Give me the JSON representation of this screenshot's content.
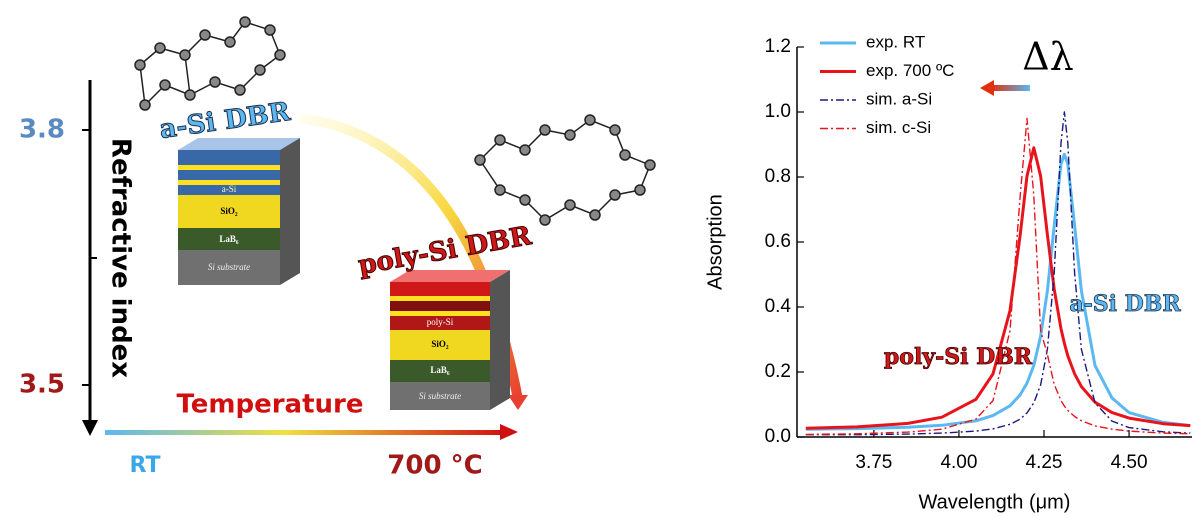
{
  "diagram": {
    "index_high": "3.8",
    "index_low": "3.5",
    "axis_label": "Refractive index",
    "temperature_label": "Temperature",
    "temp_low": "RT",
    "temp_high": "700 °C",
    "stack_1": {
      "title": "a-Si DBR",
      "layer_top": "a-Si",
      "layer_mid": "SiO₂",
      "layer_low": "LaB₆",
      "substrate": "Si substrate"
    },
    "stack_2": {
      "title": "poly-Si DBR",
      "layer_top": "poly-Si",
      "layer_mid": "SiO₂",
      "layer_low": "LaB₆",
      "substrate": "Si substrate"
    }
  },
  "chart_data": {
    "type": "line",
    "xlabel": "Wavelength (μm)",
    "ylabel": "Absorption",
    "annotations": [
      "Δλ",
      "a-Si DBR",
      "poly-Si DBR"
    ],
    "xlim": [
      3.524,
      4.685
    ],
    "ylim": [
      0,
      1.2
    ],
    "xticks": [
      3.75,
      {
        "value": 4,
        "label": "4.00"
      },
      4.25,
      {
        "value": 4.5,
        "label": "4.50"
      }
    ],
    "yticks": [
      {
        "value": 0,
        "label": "0.0"
      },
      0.2,
      0.4,
      0.6,
      0.8,
      {
        "value": 1,
        "label": "1.0"
      },
      1.2
    ],
    "x": [
      3.55,
      3.7,
      3.85,
      3.95,
      4.05,
      4.1,
      4.15,
      4.18,
      4.2,
      4.22,
      4.24,
      4.26,
      4.28,
      4.3,
      4.31,
      4.32,
      4.34,
      4.36,
      4.4,
      4.45,
      4.5,
      4.6,
      4.68
    ],
    "series": [
      {
        "name": "exp. RT",
        "color": "#5bb8f0",
        "values": [
          0.024,
          0.026,
          0.03,
          0.036,
          0.05,
          0.066,
          0.096,
          0.13,
          0.166,
          0.22,
          0.31,
          0.45,
          0.65,
          0.84,
          0.87,
          0.84,
          0.65,
          0.45,
          0.22,
          0.12,
          0.075,
          0.045,
          0.035
        ]
      },
      {
        "name": "exp. 700 ºC",
        "color": "#e8141c",
        "values": [
          0.027,
          0.031,
          0.042,
          0.061,
          0.116,
          0.194,
          0.389,
          0.622,
          0.803,
          0.89,
          0.803,
          0.622,
          0.455,
          0.333,
          0.288,
          0.25,
          0.194,
          0.155,
          0.107,
          0.075,
          0.058,
          0.041,
          0.035
        ]
      },
      {
        "name": "sim. a-Si",
        "color": "#1a1a80",
        "dash": "dashdot",
        "values": [
          0.007,
          0.007,
          0.009,
          0.012,
          0.018,
          0.025,
          0.039,
          0.055,
          0.074,
          0.105,
          0.16,
          0.27,
          0.505,
          0.905,
          1.0,
          0.905,
          0.505,
          0.27,
          0.105,
          0.049,
          0.029,
          0.016,
          0.012
        ]
      },
      {
        "name": "sim. c-Si",
        "color": "#e8141c",
        "dash": "dashdot",
        "values": [
          0.008,
          0.01,
          0.015,
          0.024,
          0.055,
          0.112,
          0.327,
          0.743,
          0.98,
          0.743,
          0.327,
          0.254,
          0.162,
          0.112,
          0.095,
          0.082,
          0.063,
          0.05,
          0.034,
          0.024,
          0.018,
          0.012,
          0.01
        ]
      }
    ]
  }
}
